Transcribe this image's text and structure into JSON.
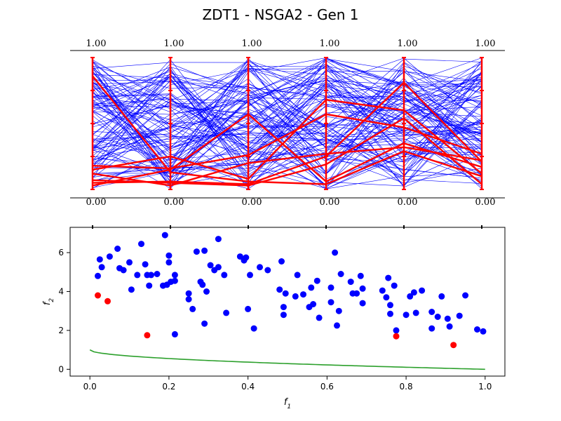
{
  "chart_data": [
    {
      "type": "parallel_coordinates",
      "axes_count": 6,
      "axis_top_labels": [
        "1.00",
        "1.00",
        "1.00",
        "1.00",
        "1.00",
        "1.00"
      ],
      "axis_bottom_labels": [
        "0.00",
        "0.00",
        "0.00",
        "0.00",
        "0.00",
        "0.00"
      ],
      "ylim": [
        0,
        1
      ],
      "colors": {
        "population": "#0000ff",
        "pareto": "#ff0000",
        "axes": "#ff0000"
      },
      "pareto_lines": [
        [
          0.86,
          0.13,
          0.06,
          0.04,
          0.29,
          0.1
        ],
        [
          0.18,
          0.16,
          0.26,
          0.57,
          0.47,
          0.27
        ],
        [
          0.07,
          0.05,
          0.03,
          0.19,
          0.54,
          0.04
        ],
        [
          0.03,
          0.15,
          0.57,
          0.06,
          0.35,
          0.17
        ],
        [
          0.15,
          0.25,
          0.08,
          0.68,
          0.6,
          0.12
        ],
        [
          0.05,
          0.06,
          0.04,
          0.25,
          0.81,
          0.21
        ],
        [
          0.12,
          0.03,
          0.2,
          0.27,
          0.32,
          0.22
        ]
      ],
      "population_lines_count": 110
    },
    {
      "type": "scatter",
      "xlabel": "f1",
      "ylabel": "f2",
      "xlim": [
        -0.05,
        1.05
      ],
      "ylim": [
        -0.35,
        7.3
      ],
      "xticks": [
        "0.0",
        "0.2",
        "0.4",
        "0.6",
        "0.8",
        "1.0"
      ],
      "xtick_values": [
        0.0,
        0.2,
        0.4,
        0.6,
        0.8,
        1.0
      ],
      "yticks": [
        "0",
        "2",
        "4",
        "6"
      ],
      "ytick_values": [
        0,
        2,
        4,
        6
      ],
      "colors": {
        "dominated": "#0000ff",
        "nondominated": "#ff0000",
        "front": "#2ca02c"
      },
      "series": [
        {
          "kind": "dominated",
          "points": [
            [
              0.02,
              4.8
            ],
            [
              0.025,
              5.65
            ],
            [
              0.03,
              5.25
            ],
            [
              0.05,
              5.8
            ],
            [
              0.07,
              6.2
            ],
            [
              0.075,
              5.2
            ],
            [
              0.085,
              5.1
            ],
            [
              0.1,
              5.5
            ],
            [
              0.105,
              4.1
            ],
            [
              0.12,
              4.85
            ],
            [
              0.13,
              6.45
            ],
            [
              0.14,
              5.4
            ],
            [
              0.145,
              4.85
            ],
            [
              0.15,
              4.3
            ],
            [
              0.155,
              4.85
            ],
            [
              0.17,
              4.9
            ],
            [
              0.185,
              4.3
            ],
            [
              0.19,
              6.9
            ],
            [
              0.195,
              4.35
            ],
            [
              0.2,
              5.5
            ],
            [
              0.2,
              5.85
            ],
            [
              0.205,
              4.5
            ],
            [
              0.215,
              4.55
            ],
            [
              0.215,
              4.85
            ],
            [
              0.25,
              3.9
            ],
            [
              0.25,
              3.6
            ],
            [
              0.26,
              3.1
            ],
            [
              0.27,
              6.05
            ],
            [
              0.28,
              4.5
            ],
            [
              0.285,
              4.35
            ],
            [
              0.29,
              6.1
            ],
            [
              0.29,
              2.35
            ],
            [
              0.295,
              4.0
            ],
            [
              0.305,
              5.35
            ],
            [
              0.315,
              5.1
            ],
            [
              0.325,
              5.25
            ],
            [
              0.325,
              6.7
            ],
            [
              0.34,
              4.85
            ],
            [
              0.345,
              2.9
            ],
            [
              0.38,
              5.8
            ],
            [
              0.39,
              5.6
            ],
            [
              0.395,
              5.75
            ],
            [
              0.4,
              3.1
            ],
            [
              0.405,
              4.85
            ],
            [
              0.415,
              2.1
            ],
            [
              0.43,
              5.25
            ],
            [
              0.45,
              5.1
            ],
            [
              0.48,
              4.1
            ],
            [
              0.485,
              5.55
            ],
            [
              0.49,
              3.2
            ],
            [
              0.49,
              2.8
            ],
            [
              0.495,
              3.9
            ],
            [
              0.52,
              3.75
            ],
            [
              0.525,
              4.85
            ],
            [
              0.54,
              3.85
            ],
            [
              0.555,
              3.2
            ],
            [
              0.56,
              4.2
            ],
            [
              0.565,
              3.35
            ],
            [
              0.575,
              4.55
            ],
            [
              0.58,
              2.65
            ],
            [
              0.61,
              4.2
            ],
            [
              0.61,
              3.45
            ],
            [
              0.62,
              6.0
            ],
            [
              0.625,
              2.25
            ],
            [
              0.63,
              3.0
            ],
            [
              0.635,
              4.9
            ],
            [
              0.66,
              4.5
            ],
            [
              0.665,
              3.9
            ],
            [
              0.675,
              3.9
            ],
            [
              0.685,
              4.8
            ],
            [
              0.69,
              4.15
            ],
            [
              0.69,
              3.4
            ],
            [
              0.74,
              4.05
            ],
            [
              0.75,
              3.7
            ],
            [
              0.755,
              4.7
            ],
            [
              0.76,
              3.3
            ],
            [
              0.76,
              2.85
            ],
            [
              0.77,
              4.3
            ],
            [
              0.775,
              2.0
            ],
            [
              0.8,
              2.8
            ],
            [
              0.81,
              3.75
            ],
            [
              0.82,
              3.95
            ],
            [
              0.825,
              2.9
            ],
            [
              0.84,
              4.05
            ],
            [
              0.865,
              2.1
            ],
            [
              0.865,
              2.95
            ],
            [
              0.88,
              2.7
            ],
            [
              0.89,
              3.75
            ],
            [
              0.905,
              2.6
            ],
            [
              0.91,
              2.2
            ],
            [
              0.935,
              2.75
            ],
            [
              0.95,
              3.8
            ],
            [
              0.98,
              2.05
            ],
            [
              0.995,
              1.95
            ],
            [
              0.215,
              1.8
            ]
          ]
        },
        {
          "kind": "nondominated",
          "points": [
            [
              0.02,
              3.8
            ],
            [
              0.045,
              3.5
            ],
            [
              0.145,
              1.75
            ],
            [
              0.775,
              1.7
            ],
            [
              0.92,
              1.25
            ]
          ]
        }
      ]
    }
  ],
  "figure": {
    "title": "ZDT1 - NSGA2 - Gen 1"
  }
}
